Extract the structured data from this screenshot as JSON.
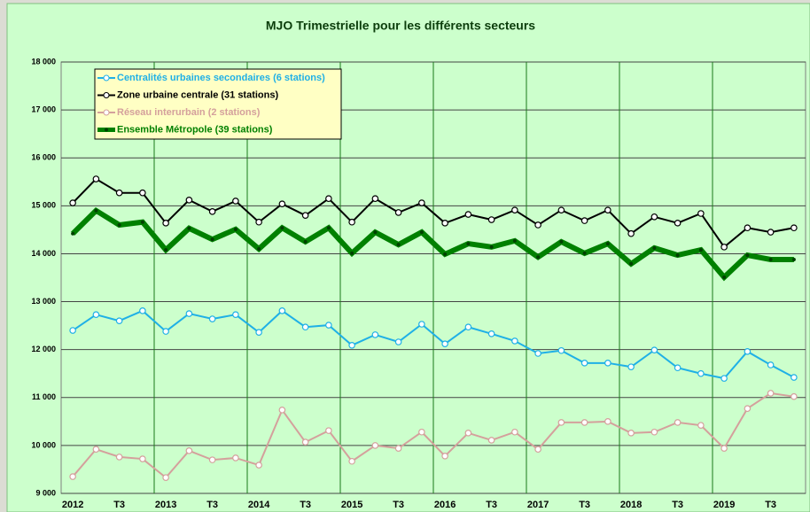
{
  "chart_data": {
    "type": "line",
    "title": "MJO Trimestrielle pour les différents secteurs",
    "categories": [
      "2012",
      null,
      "T3",
      null,
      "2013",
      null,
      "T3",
      null,
      "2014",
      null,
      "T3",
      null,
      "2015",
      null,
      "T3",
      null,
      "2016",
      null,
      "T3",
      null,
      "2017",
      null,
      "T3",
      null,
      "2018",
      null,
      "T3",
      null,
      "2019",
      null,
      "T3",
      null
    ],
    "series": [
      {
        "name": "Centralités urbaines secondaires (6 stations)",
        "color": "#1fb0e6",
        "values": [
          12400,
          12730,
          12600,
          12810,
          12380,
          12750,
          12640,
          12730,
          12360,
          12810,
          12470,
          12510,
          12090,
          12310,
          12160,
          12530,
          12120,
          12470,
          12330,
          12180,
          11920,
          11980,
          11720,
          11720,
          11640,
          11990,
          11620,
          11500,
          11400,
          11960,
          11680,
          11420
        ]
      },
      {
        "name": "Zone urbaine centrale (31 stations)",
        "color": "#000000",
        "values": [
          15060,
          15560,
          15270,
          15270,
          14640,
          15120,
          14880,
          15100,
          14660,
          15040,
          14800,
          15150,
          14660,
          15150,
          14860,
          15060,
          14640,
          14820,
          14710,
          14910,
          14600,
          14910,
          14690,
          14910,
          14420,
          14770,
          14640,
          14840,
          14140,
          14540,
          14450,
          14540
        ]
      },
      {
        "name": "Réseau interurbain (2 stations)",
        "color": "#d4a09c",
        "values": [
          9350,
          9920,
          9760,
          9720,
          9330,
          9890,
          9700,
          9740,
          9590,
          10740,
          10070,
          10310,
          9670,
          10000,
          9940,
          10280,
          9780,
          10260,
          10110,
          10280,
          9920,
          10480,
          10480,
          10500,
          10260,
          10280,
          10480,
          10420,
          9940,
          10770,
          11090,
          11020
        ]
      },
      {
        "name": "Ensemble Métropole (39 stations)",
        "color": "#008000",
        "values": [
          14420,
          14900,
          14600,
          14660,
          14080,
          14530,
          14300,
          14510,
          14100,
          14540,
          14250,
          14540,
          14010,
          14450,
          14190,
          14450,
          13990,
          14210,
          14140,
          14270,
          13930,
          14250,
          14010,
          14210,
          13790,
          14120,
          13970,
          14080,
          13510,
          13970,
          13880,
          13880
        ]
      }
    ],
    "ylim": [
      9000,
      18000
    ],
    "yticks": [
      {
        "value": 9000,
        "label": "9 000"
      },
      {
        "value": 10000,
        "label": "10 000"
      },
      {
        "value": 11000,
        "label": "11 000"
      },
      {
        "value": 12000,
        "label": "12 000"
      },
      {
        "value": 13000,
        "label": "13 000"
      },
      {
        "value": 14000,
        "label": "14 000"
      },
      {
        "value": 15000,
        "label": "15 000"
      },
      {
        "value": 16000,
        "label": "16 000"
      },
      {
        "value": 17000,
        "label": "17 000"
      },
      {
        "value": 18000,
        "label": "18 000"
      }
    ],
    "grid": true,
    "legend": "top-left"
  }
}
